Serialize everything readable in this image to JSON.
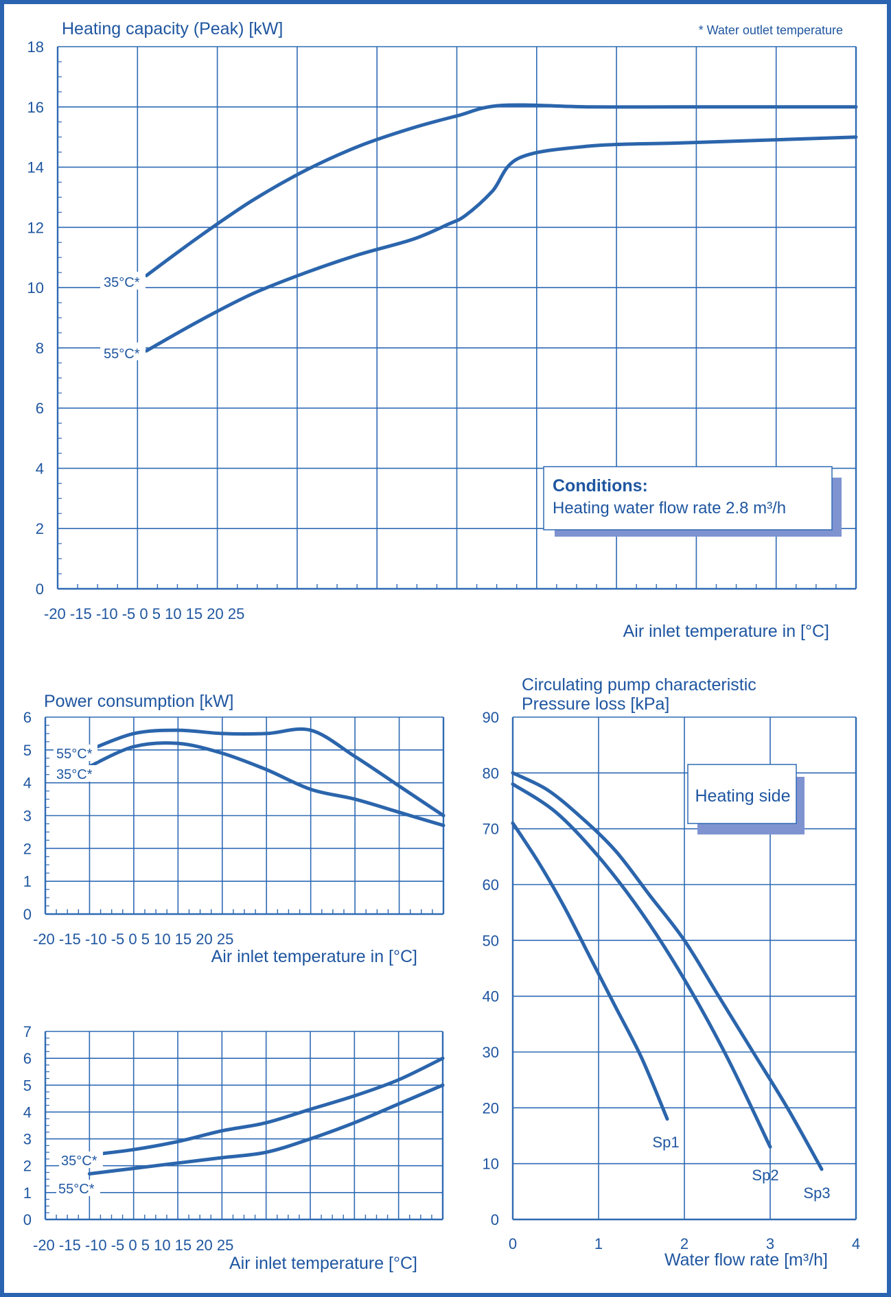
{
  "page": {
    "colors": {
      "line": "#2b65ac",
      "grid": "#2f6ab4",
      "text": "#1f56a0",
      "shadow": "#7f93d1",
      "border": "#2a63b0"
    }
  },
  "chart_data": [
    {
      "id": "heating",
      "type": "line",
      "title": "Heating capacity (Peak) [kW]",
      "note": "* Water outlet temperature",
      "xlabel": "Air inlet temperature in [°C]",
      "x_tick_labels": "-20 -15 -10 -5 0 5 10 15 20 25",
      "xlim": [
        -20,
        25
      ],
      "ylim": [
        0,
        18
      ],
      "y_ticks": [
        0,
        2,
        4,
        6,
        8,
        10,
        12,
        14,
        16,
        18
      ],
      "conditions_title": "Conditions:",
      "conditions_text": "Heating water flow rate   2.8 m³/h",
      "series": [
        {
          "name": "35°C*",
          "x": [
            -15,
            -12,
            -9,
            -6,
            -3,
            0,
            2.5,
            5,
            10,
            15,
            20,
            25
          ],
          "y": [
            10.4,
            11.7,
            12.9,
            13.9,
            14.7,
            15.3,
            15.7,
            16.05,
            16.0,
            16.0,
            16.0,
            16.0
          ]
        },
        {
          "name": "55°C*",
          "x": [
            -15,
            -12,
            -9,
            -6,
            -3,
            0,
            2,
            3,
            4.5,
            6,
            10,
            15,
            20,
            25
          ],
          "y": [
            7.9,
            8.9,
            9.8,
            10.5,
            11.1,
            11.6,
            12.1,
            12.4,
            13.2,
            14.3,
            14.7,
            14.8,
            14.9,
            15.0
          ]
        }
      ]
    },
    {
      "id": "power",
      "type": "line",
      "title": "Power consumption [kW]",
      "xlabel": "Air inlet temperature in [°C]",
      "x_tick_labels": "-20 -15 -10 -5 0 5 10 15 20 25",
      "xlim": [
        -20,
        25
      ],
      "ylim": [
        0,
        6
      ],
      "y_ticks": [
        0,
        1,
        2,
        3,
        4,
        5,
        6
      ],
      "series": [
        {
          "name": "55°C*",
          "x": [
            -15,
            -10,
            -5,
            0,
            5,
            10,
            15,
            20,
            25
          ],
          "y": [
            5.0,
            5.5,
            5.6,
            5.5,
            5.5,
            5.6,
            4.8,
            3.9,
            3.0
          ]
        },
        {
          "name": "35°C*",
          "x": [
            -15,
            -10,
            -5,
            0,
            5,
            10,
            15,
            20,
            25
          ],
          "y": [
            4.5,
            5.1,
            5.2,
            4.9,
            4.4,
            3.8,
            3.5,
            3.1,
            2.7
          ]
        }
      ]
    },
    {
      "id": "cop",
      "type": "line",
      "title": "",
      "xlabel": "Air inlet temperature [°C]",
      "x_tick_labels": "-20 -15 -10 -5 0 5 10 15 20 25",
      "xlim": [
        -20,
        25
      ],
      "ylim": [
        0,
        7
      ],
      "y_ticks": [
        0,
        1,
        2,
        3,
        4,
        5,
        6,
        7
      ],
      "series": [
        {
          "name": "35°C*",
          "x": [
            -15,
            -10,
            -5,
            0,
            5,
            10,
            15,
            20,
            25
          ],
          "y": [
            2.4,
            2.6,
            2.9,
            3.3,
            3.6,
            4.1,
            4.6,
            5.2,
            6.0
          ]
        },
        {
          "name": "55°C*",
          "x": [
            -15,
            -10,
            -5,
            0,
            5,
            10,
            15,
            20,
            25
          ],
          "y": [
            1.7,
            1.9,
            2.1,
            2.3,
            2.5,
            3.0,
            3.6,
            4.3,
            5.0
          ]
        }
      ]
    },
    {
      "id": "pump",
      "type": "line",
      "title": "Circulating pump characteristic",
      "subtitle": "Pressure loss [kPa]",
      "xlabel": "Water flow rate [m³/h]",
      "xlim": [
        0,
        4
      ],
      "ylim": [
        0,
        90
      ],
      "x_ticks": [
        0,
        1,
        2,
        3,
        4
      ],
      "y_ticks": [
        0,
        10,
        20,
        30,
        40,
        50,
        60,
        70,
        80,
        90
      ],
      "box_label": "Heating side",
      "series": [
        {
          "name": "Sp1",
          "x": [
            0,
            0.3,
            0.6,
            0.9,
            1.2,
            1.5,
            1.8
          ],
          "y": [
            71,
            64,
            56,
            47,
            38,
            29,
            18
          ]
        },
        {
          "name": "Sp2",
          "x": [
            0,
            0.5,
            1.0,
            1.5,
            2.0,
            2.5,
            3.0
          ],
          "y": [
            78,
            73,
            65,
            55,
            43,
            29,
            13
          ]
        },
        {
          "name": "Sp3",
          "x": [
            0,
            0.4,
            0.8,
            1.2,
            1.6,
            2.0,
            2.4,
            2.8,
            3.2,
            3.6
          ],
          "y": [
            80,
            77,
            72,
            66,
            58,
            50,
            40,
            30,
            20,
            9
          ]
        }
      ]
    }
  ]
}
